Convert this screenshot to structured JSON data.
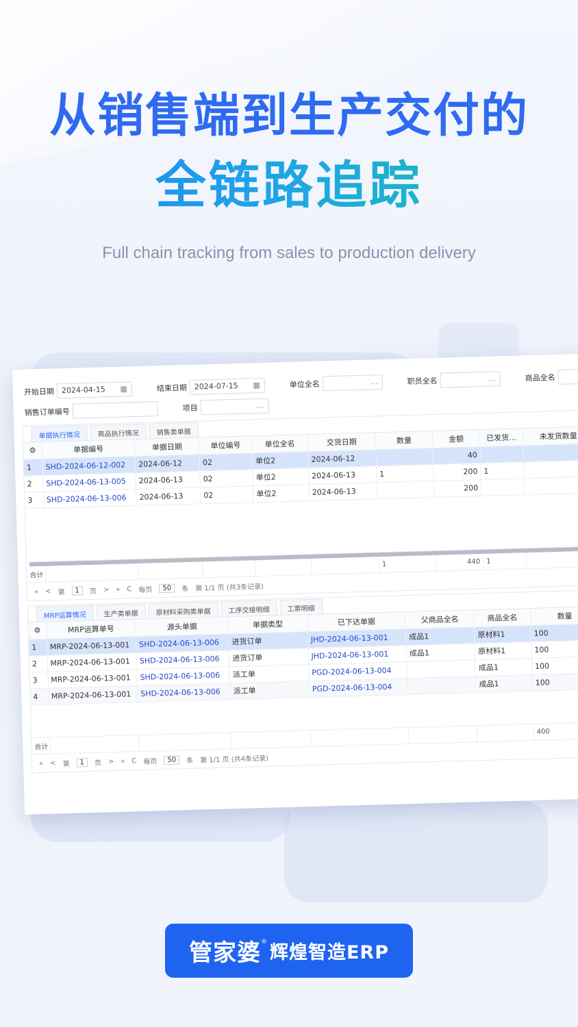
{
  "hero": {
    "line1": "从销售端到生产交付的",
    "line2": "全链路追踪",
    "subtitle": "Full chain tracking from sales to production delivery"
  },
  "filters": {
    "start_label": "开始日期",
    "start_value": "2024-04-15",
    "end_label": "结束日期",
    "end_value": "2024-07-15",
    "unit_label": "单位全名",
    "staff_label": "职员全名",
    "product_label": "商品全名",
    "order_label": "销售订单编号",
    "project_label": "项目"
  },
  "top_tabs": [
    "单据执行情况",
    "商品执行情况",
    "销售类单据"
  ],
  "top_table": {
    "headers": [
      "单据编号",
      "单据日期",
      "单位编号",
      "单位全名",
      "交货日期",
      "数量",
      "金额",
      "已发货...",
      "未发货数量"
    ],
    "rows": [
      {
        "idx": "1",
        "no": "SHD-2024-06-12-002",
        "date": "2024-06-12",
        "unit_no": "02",
        "unit": "单位2",
        "delivery": "2024-06-12",
        "qty": "",
        "amount": "40",
        "shipped": "",
        "unshipped": ""
      },
      {
        "idx": "2",
        "no": "SHD-2024-06-13-005",
        "date": "2024-06-13",
        "unit_no": "02",
        "unit": "单位2",
        "delivery": "2024-06-13",
        "qty": "1",
        "amount": "200",
        "shipped": "1",
        "unshipped": ""
      },
      {
        "idx": "3",
        "no": "SHD-2024-06-13-006",
        "date": "2024-06-13",
        "unit_no": "02",
        "unit": "单位2",
        "delivery": "2024-06-13",
        "qty": "",
        "amount": "200",
        "shipped": "",
        "unshipped": ""
      }
    ],
    "sum_label": "合计",
    "sum_qty": "1",
    "sum_amount": "440",
    "sum_shipped": "1"
  },
  "top_pager": {
    "first": "«",
    "prev": "<",
    "page_prefix": "第",
    "page": "1",
    "page_suffix": "页",
    "next": ">",
    "last": "»",
    "refresh": "C",
    "per_label": "每页",
    "per": "50",
    "per_suffix": "条",
    "info": "第 1/1 页 (共3条记录)"
  },
  "bottom_tabs": [
    "MRP运算情况",
    "生产类单据",
    "原材料采购类单据",
    "工序交接明细",
    "工票明细"
  ],
  "bottom_table": {
    "headers": [
      "MRP运算单号",
      "源头单据",
      "单据类型",
      "已下达单据",
      "父商品全名",
      "商品全名",
      "数量"
    ],
    "rows": [
      {
        "idx": "1",
        "mrp": "MRP-2024-06-13-001",
        "src": "SHD-2024-06-13-006",
        "type": "进货订单",
        "issued": "JHD-2024-06-13-001",
        "parent": "成品1",
        "product": "原材料1",
        "qty": "100"
      },
      {
        "idx": "2",
        "mrp": "MRP-2024-06-13-001",
        "src": "SHD-2024-06-13-006",
        "type": "进货订单",
        "issued": "JHD-2024-06-13-001",
        "parent": "成品1",
        "product": "原材料1",
        "qty": "100"
      },
      {
        "idx": "3",
        "mrp": "MRP-2024-06-13-001",
        "src": "SHD-2024-06-13-006",
        "type": "派工单",
        "issued": "PGD-2024-06-13-004",
        "parent": "",
        "product": "成品1",
        "qty": "100"
      },
      {
        "idx": "4",
        "mrp": "MRP-2024-06-13-001",
        "src": "SHD-2024-06-13-006",
        "type": "派工单",
        "issued": "PGD-2024-06-13-004",
        "parent": "",
        "product": "成品1",
        "qty": "100"
      }
    ],
    "sum_label": "合计",
    "sum_qty": "400"
  },
  "bottom_pager": {
    "first": "«",
    "prev": "<",
    "page_prefix": "第",
    "page": "1",
    "page_suffix": "页",
    "next": ">",
    "last": "»",
    "refresh": "C",
    "per_label": "每页",
    "per": "50",
    "per_suffix": "条",
    "info": "第 1/1 页 (共4条记录)"
  },
  "brand": {
    "name": "管家婆",
    "reg": "®",
    "product": "辉煌智造ERP"
  },
  "icons": {
    "calendar": "calendar-icon",
    "more": "ellipsis-icon",
    "settings": "gear-icon"
  },
  "colors": {
    "accent": "#2f6bf0",
    "link": "#2448c8",
    "selected_row": "#d6e4fb",
    "brand_bg": "#1f64f1"
  }
}
